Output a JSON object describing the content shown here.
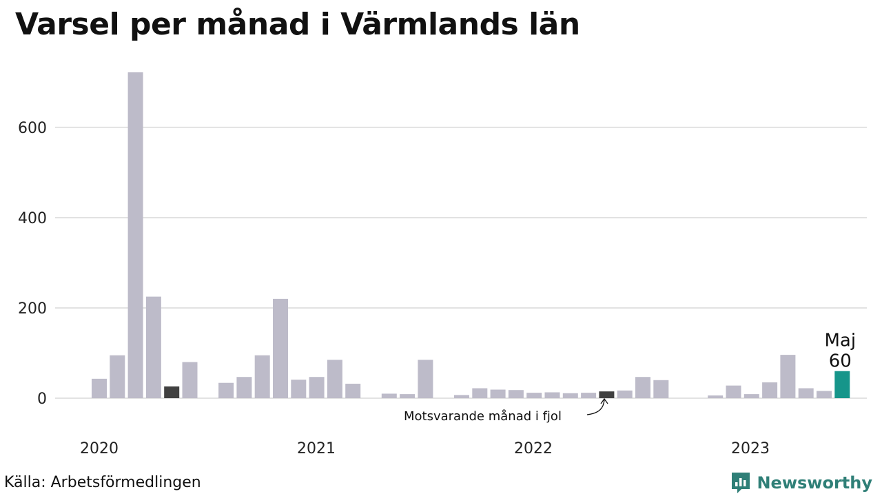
{
  "title": "Varsel per månad i Värmlands län",
  "source": "Källa: Arbetsförmedlingen",
  "brand": {
    "name": "Newsworthy",
    "color": "#2f7f77"
  },
  "chart_data": {
    "type": "bar",
    "title": "Varsel per månad i Värmlands län",
    "ylim": [
      0,
      730
    ],
    "yticks": [
      0,
      200,
      400,
      600
    ],
    "grid": true,
    "colors": {
      "bar": "#bdbbc9",
      "previous_year": "#404040",
      "current": "#16958a",
      "grid": "#e2e2e2"
    },
    "year_labels": [
      "2020",
      "2021",
      "2022",
      "2023"
    ],
    "series": [
      {
        "year": "2020",
        "values": [
          43,
          95,
          722,
          225,
          26,
          80
        ]
      },
      {
        "year": "2021",
        "values": [
          34,
          47,
          95,
          220,
          41,
          47,
          85,
          32,
          0,
          10,
          9,
          85
        ]
      },
      {
        "year": "2022",
        "values": [
          0,
          7,
          22,
          19,
          18,
          12,
          13,
          11,
          12,
          15,
          17,
          47,
          40
        ]
      },
      {
        "year": "2023",
        "values": [
          0,
          6,
          28,
          9,
          35,
          96,
          22,
          16,
          60
        ]
      }
    ],
    "previous_year_bars": [
      "2020.4",
      "2021.8",
      "2022.9"
    ],
    "highlight": {
      "label": "Maj",
      "value": "60"
    },
    "annotation": "Motsvarande månad i fjol"
  }
}
